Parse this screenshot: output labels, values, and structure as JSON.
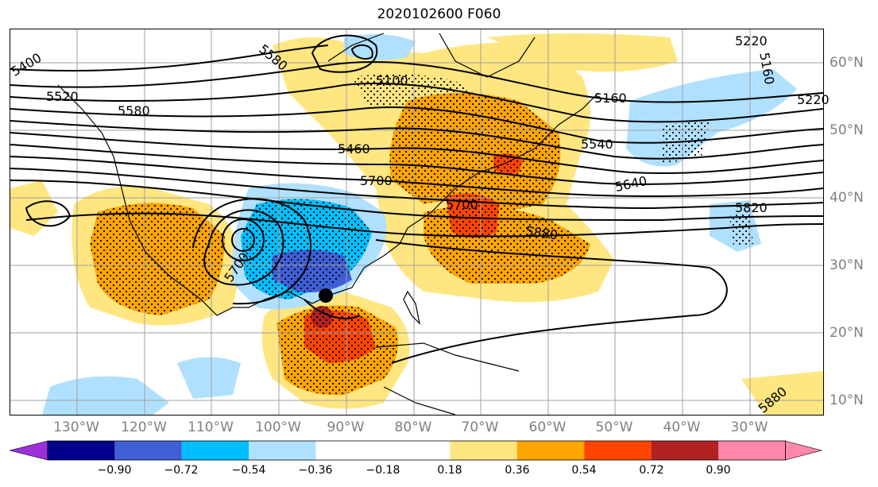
{
  "title": "2020102600 F060",
  "map": {
    "lon_labels": [
      "130°W",
      "120°W",
      "110°W",
      "100°W",
      "90°W",
      "80°W",
      "70°W",
      "60°W",
      "50°W",
      "40°W",
      "30°W"
    ],
    "lat_labels": [
      "60°N",
      "50°N",
      "40°N",
      "30°N",
      "20°N",
      "10°N"
    ],
    "contour_labels": [
      "5220",
      "5160",
      "5220",
      "5100",
      "5160",
      "5400",
      "5580",
      "5520",
      "5580",
      "5460",
      "5700",
      "5540",
      "5640",
      "5700",
      "5820",
      "5880",
      "5700",
      "5880"
    ],
    "storm_marker": "hurricane-center-dot"
  },
  "colorbar": {
    "ticks": [
      "−0.90",
      "−0.72",
      "−0.54",
      "−0.36",
      "−0.18",
      "0.18",
      "0.36",
      "0.54",
      "0.72",
      "0.90"
    ],
    "colors": [
      "#9b30d9",
      "#00008b",
      "#3f5fd6",
      "#00bfff",
      "#b0e0ff",
      "#ffffff",
      "#ffe680",
      "#ffa500",
      "#ff4500",
      "#b22222",
      "#ff88aa"
    ]
  }
}
